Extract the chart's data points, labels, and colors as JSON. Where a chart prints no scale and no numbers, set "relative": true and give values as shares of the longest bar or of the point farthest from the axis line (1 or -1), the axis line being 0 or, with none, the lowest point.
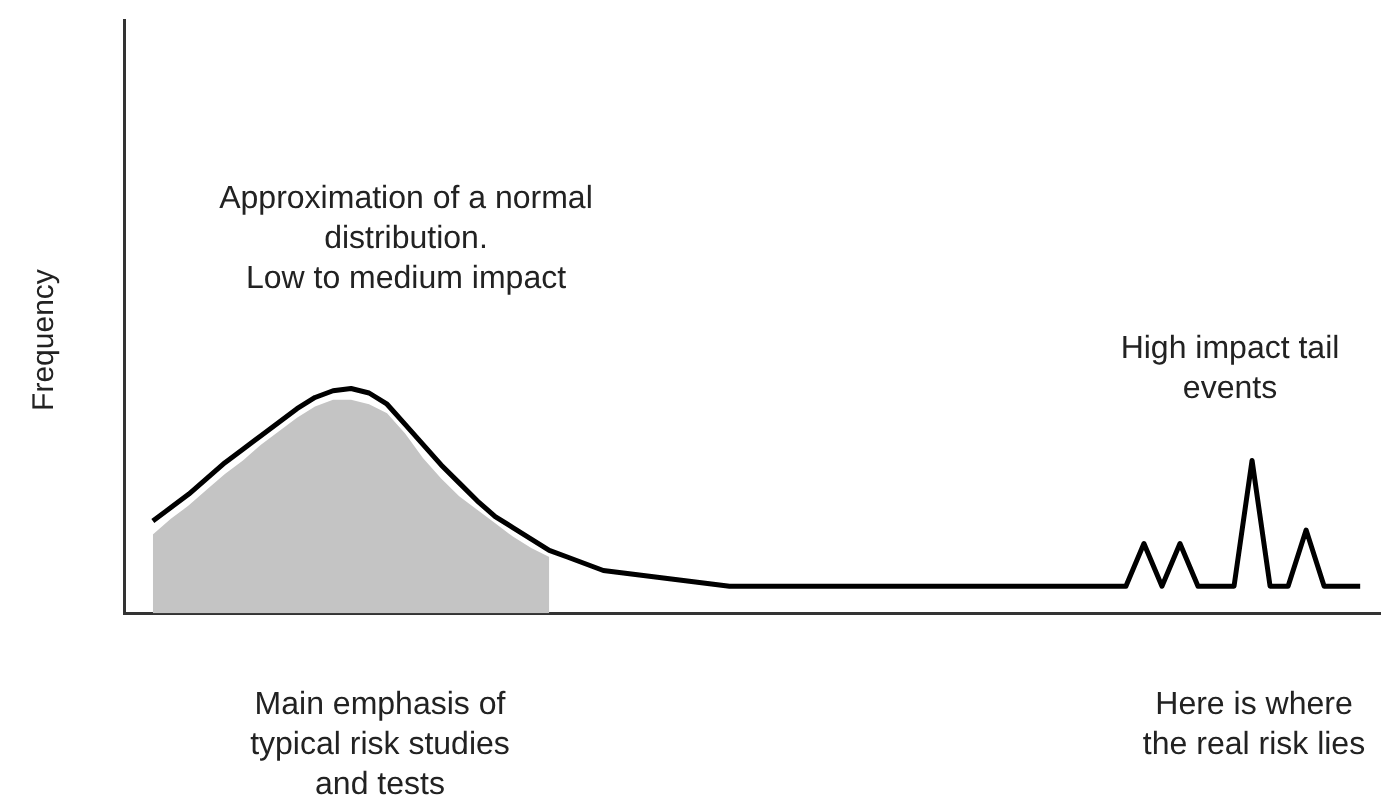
{
  "chart_data": {
    "type": "line",
    "relative": true,
    "ylabel": "Frequency",
    "categories": [
      null,
      null,
      null,
      null,
      null,
      null,
      null,
      null,
      null,
      null,
      null,
      null,
      null,
      null,
      null,
      null,
      null,
      null,
      null,
      null,
      null,
      null,
      null,
      null,
      null,
      null,
      null,
      null,
      null,
      null,
      null,
      null,
      null,
      null,
      null,
      null,
      null,
      null,
      null,
      null,
      null,
      null,
      null,
      null,
      null,
      null,
      null,
      null,
      null,
      null,
      null,
      null,
      null,
      null,
      null,
      null,
      null,
      null,
      null,
      null,
      null,
      null,
      null,
      null,
      null,
      null,
      null,
      null
    ],
    "series": [
      {
        "type": "area",
        "color": "#c4c4c4",
        "values": [
          0.35,
          0.42,
          0.48,
          0.55,
          0.62,
          0.68,
          0.75,
          0.81,
          0.87,
          0.92,
          0.95,
          0.95,
          0.93,
          0.89,
          0.8,
          0.69,
          0.6,
          0.52,
          0.46,
          0.4,
          0.34,
          0.29,
          0.25,
          null,
          null,
          null,
          null,
          null,
          null,
          null,
          null,
          null,
          null,
          null,
          null,
          null,
          null,
          null,
          null,
          null,
          null,
          null,
          null,
          null,
          null,
          null,
          null,
          null,
          null,
          null,
          null,
          null,
          null,
          null,
          null,
          null,
          null,
          null,
          null,
          null,
          null,
          null,
          null,
          null,
          null,
          null,
          null,
          null
        ]
      },
      {
        "type": "line",
        "color": "#000000",
        "values": [
          0.41,
          0.47,
          0.53,
          0.6,
          0.67,
          0.73,
          0.79,
          0.85,
          0.91,
          0.96,
          0.99,
          1,
          0.98,
          0.93,
          0.84,
          0.75,
          0.66,
          0.58,
          0.5,
          0.43,
          0.38,
          0.33,
          0.28,
          0.25,
          0.22,
          0.19,
          0.18,
          0.17,
          0.16,
          0.15,
          0.14,
          0.13,
          0.12,
          0.12,
          0.12,
          0.12,
          0.12,
          0.12,
          0.12,
          0.12,
          0.12,
          0.12,
          0.12,
          0.12,
          0.12,
          0.12,
          0.12,
          0.12,
          0.12,
          0.12,
          0.12,
          0.12,
          0.12,
          0.12,
          0.12,
          0.31,
          0.12,
          0.31,
          0.12,
          0.12,
          0.12,
          0.68,
          0.12,
          0.12,
          0.37,
          0.12,
          0.12,
          0.12
        ]
      }
    ],
    "annotations": [
      "Approximation of a normal\ndistribution.\nLow to medium impact",
      "High impact tail\nevents",
      "Main emphasis of\ntypical risk studies\nand tests",
      "Here is where\nthe real risk lies"
    ],
    "grid": false,
    "legend": false,
    "marker": "none",
    "line_style": "solid"
  }
}
